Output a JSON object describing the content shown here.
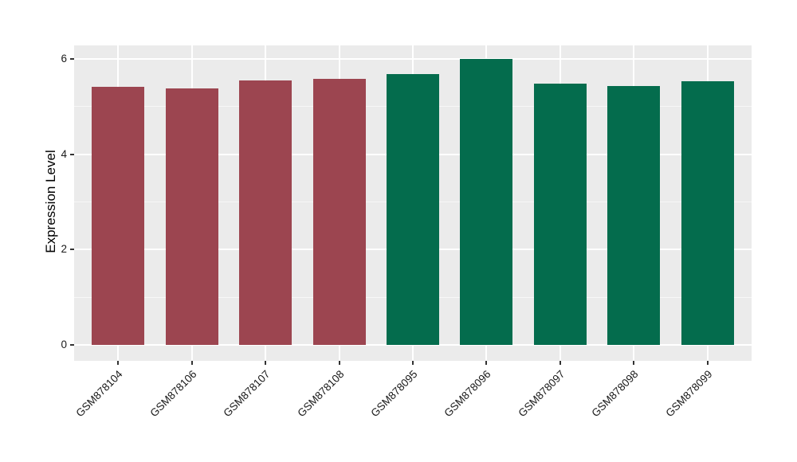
{
  "chart_data": {
    "type": "bar",
    "title": "",
    "xlabel": "",
    "ylabel": "Expression Level",
    "categories": [
      "GSM878104",
      "GSM878106",
      "GSM878107",
      "GSM878108",
      "GSM878095",
      "GSM878096",
      "GSM878097",
      "GSM878098",
      "GSM878099"
    ],
    "values": [
      5.42,
      5.38,
      5.55,
      5.59,
      5.69,
      6.0,
      5.48,
      5.43,
      5.53
    ],
    "bar_colors": [
      "#9C4550",
      "#9C4550",
      "#9C4550",
      "#9C4550",
      "#046C4D",
      "#046C4D",
      "#046C4D",
      "#046C4D",
      "#046C4D"
    ],
    "y_ticks": [
      0,
      2,
      4,
      6
    ],
    "y_minor_gridlines": [
      1,
      3,
      5
    ],
    "ylim": [
      -0.33,
      6.28
    ],
    "bar_width_fraction": 0.71,
    "legend": "none",
    "grid": true,
    "style": {
      "figure_background": "#FFFFFF",
      "panel_background": "#EBEBEB",
      "major_gridline_color": "#FFFFFF",
      "tick_color": "#333333",
      "tick_label_color": "#1A1A1A",
      "axis_title_color": "#000000"
    }
  }
}
